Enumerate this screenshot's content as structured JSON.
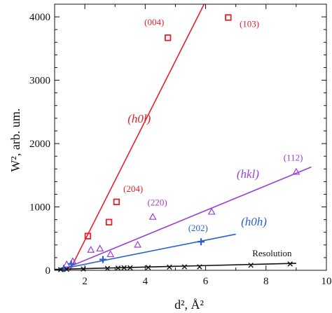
{
  "chart_data": {
    "type": "scatter",
    "title": "",
    "xlabel": "d², Å²",
    "ylabel": "W², arb. um.",
    "xlim": [
      1,
      10
    ],
    "ylim": [
      0,
      4200
    ],
    "xticks": [
      2,
      4,
      6,
      8,
      10
    ],
    "yticks": [
      0,
      1000,
      2000,
      3000,
      4000
    ],
    "grid": false,
    "legend": "none",
    "series": [
      {
        "key": "h0l",
        "name": "(h0l)",
        "color": "#e8202a",
        "marker": "square",
        "points": [
          {
            "x": 2.1,
            "y": 540
          },
          {
            "x": 2.8,
            "y": 760
          },
          {
            "x": 3.05,
            "y": 1080
          },
          {
            "x": 4.75,
            "y": 3670
          },
          {
            "x": 6.75,
            "y": 3990
          }
        ],
        "fit": [
          [
            1.5,
            0
          ],
          [
            5.95,
            4200
          ]
        ]
      },
      {
        "key": "hkl",
        "name": "(hkl)",
        "color": "#9a3fd4",
        "marker": "triangle",
        "points": [
          {
            "x": 1.4,
            "y": 90
          },
          {
            "x": 1.6,
            "y": 140
          },
          {
            "x": 2.2,
            "y": 320
          },
          {
            "x": 2.5,
            "y": 340
          },
          {
            "x": 2.85,
            "y": 250
          },
          {
            "x": 3.75,
            "y": 400
          },
          {
            "x": 4.25,
            "y": 840
          },
          {
            "x": 6.2,
            "y": 920
          },
          {
            "x": 9.0,
            "y": 1550
          }
        ],
        "fit": [
          [
            1.2,
            0
          ],
          [
            9.5,
            1630
          ]
        ]
      },
      {
        "key": "h0h",
        "name": "(h0h)",
        "color": "#2b5fcf",
        "marker": "plus",
        "points": [
          {
            "x": 1.3,
            "y": 30
          },
          {
            "x": 1.55,
            "y": 100
          },
          {
            "x": 2.6,
            "y": 170
          },
          {
            "x": 5.85,
            "y": 450
          }
        ],
        "fit": [
          [
            1.0,
            0
          ],
          [
            7.0,
            570
          ]
        ]
      },
      {
        "key": "res",
        "name": "Resolution",
        "color": "#111111",
        "marker": "x",
        "points": [
          {
            "x": 1.2,
            "y": 10
          },
          {
            "x": 1.4,
            "y": 15
          },
          {
            "x": 1.95,
            "y": 20
          },
          {
            "x": 2.75,
            "y": 30
          },
          {
            "x": 3.1,
            "y": 35
          },
          {
            "x": 3.3,
            "y": 40
          },
          {
            "x": 3.5,
            "y": 40
          },
          {
            "x": 4.1,
            "y": 45
          },
          {
            "x": 4.8,
            "y": 50
          },
          {
            "x": 5.3,
            "y": 55
          },
          {
            "x": 5.8,
            "y": 55
          },
          {
            "x": 7.5,
            "y": 80
          },
          {
            "x": 8.8,
            "y": 100
          }
        ],
        "fit": [
          [
            1.0,
            15
          ],
          [
            9.0,
            110
          ]
        ]
      }
    ],
    "annotations": [
      {
        "text": "(004)",
        "color": "#e8202a",
        "x": 4.3,
        "y": 3870,
        "italic": false
      },
      {
        "text": "(103)",
        "color": "#e8202a",
        "x": 7.45,
        "y": 3840,
        "italic": false
      },
      {
        "text": "(204)",
        "color": "#e8202a",
        "x": 3.6,
        "y": 1240,
        "italic": false
      },
      {
        "text": "(h0l)",
        "color": "#e8202a",
        "x": 3.8,
        "y": 2330,
        "italic": true
      },
      {
        "text": "(220)",
        "color": "#9a3fd4",
        "x": 4.4,
        "y": 1020,
        "italic": false
      },
      {
        "text": "(112)",
        "color": "#9a3fd4",
        "x": 8.9,
        "y": 1730,
        "italic": false
      },
      {
        "text": "(hkl)",
        "color": "#9a3fd4",
        "x": 7.4,
        "y": 1460,
        "italic": true
      },
      {
        "text": "(202)",
        "color": "#2b5fcf",
        "x": 5.75,
        "y": 620,
        "italic": false
      },
      {
        "text": "(h0h)",
        "color": "#2b5fcf",
        "x": 7.6,
        "y": 710,
        "italic": true
      },
      {
        "text": "Resolution",
        "color": "#111111",
        "x": 8.2,
        "y": 220,
        "italic": false
      }
    ]
  }
}
